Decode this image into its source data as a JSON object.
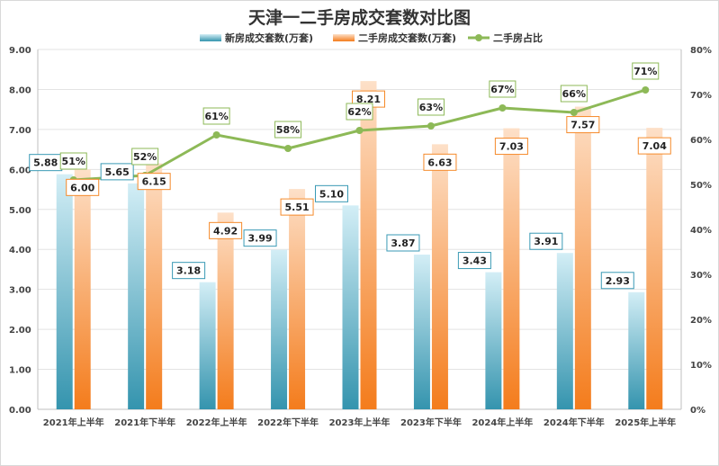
{
  "chart_data": {
    "type": "bar",
    "title": "天津一二手房成交套数对比图",
    "categories": [
      "2021年上半年",
      "2021年下半年",
      "2022年上半年",
      "2022年下半年",
      "2023年上半年",
      "2023年下半年",
      "2024年上半年",
      "2024年下半年",
      "2025年上半年"
    ],
    "series": [
      {
        "name": "新房成交套数(万套)",
        "type": "bar",
        "axis": "left",
        "values": [
          5.88,
          5.65,
          3.18,
          3.99,
          5.1,
          3.87,
          3.43,
          3.91,
          2.93
        ],
        "labels": [
          "5.88",
          "5.65",
          "3.18",
          "3.99",
          "5.10",
          "3.87",
          "3.43",
          "3.91",
          "2.93"
        ],
        "color": "#3a9ab5"
      },
      {
        "name": "二手房成交套数(万套)",
        "type": "bar",
        "axis": "left",
        "values": [
          6.0,
          6.15,
          4.92,
          5.51,
          8.21,
          6.63,
          7.03,
          7.57,
          7.04
        ],
        "labels": [
          "6.00",
          "6.15",
          "4.92",
          "5.51",
          "8.21",
          "6.63",
          "7.03",
          "7.57",
          "7.04"
        ],
        "color": "#f58a2a"
      },
      {
        "name": "二手房占比",
        "type": "line",
        "axis": "right",
        "values": [
          51,
          52,
          61,
          58,
          62,
          63,
          67,
          66,
          71
        ],
        "labels": [
          "51%",
          "52%",
          "61%",
          "58%",
          "62%",
          "63%",
          "67%",
          "66%",
          "71%"
        ],
        "color": "#8db957"
      }
    ],
    "y_left": {
      "ylim": [
        0,
        9
      ],
      "ticks": [
        "0.00",
        "1.00",
        "2.00",
        "3.00",
        "4.00",
        "5.00",
        "6.00",
        "7.00",
        "8.00",
        "9.00"
      ]
    },
    "y_right": {
      "ylim": [
        0,
        80
      ],
      "ticks": [
        "0%",
        "10%",
        "20%",
        "30%",
        "40%",
        "50%",
        "60%",
        "70%",
        "80%"
      ]
    },
    "xlabel": "",
    "ylabel": "",
    "grid": true,
    "legend": "top-center"
  }
}
